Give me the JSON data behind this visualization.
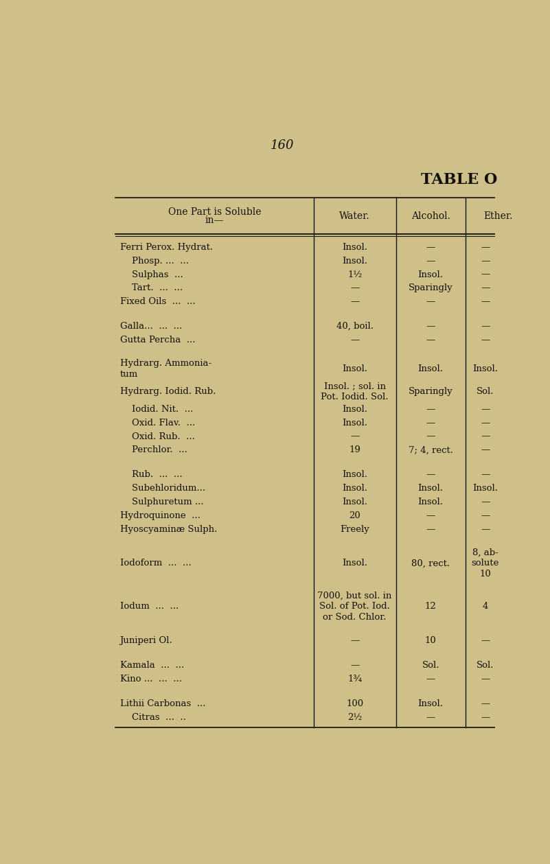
{
  "page_number": "160",
  "table_title": "TABLE O",
  "bg_color": "#cfc08a",
  "text_color": "#111008",
  "header_row": [
    "One Part is Soluble\nin—",
    "Water.",
    "Alcohol.",
    "Ether."
  ],
  "rows": [
    {
      "name": "Ferri Perox. Hydrat.",
      "water": "Insol.",
      "alcohol": "—",
      "ether": "—",
      "indent": 0,
      "spacer": false
    },
    {
      "name": "    Phosp. ...  ...",
      "water": "Insol.",
      "alcohol": "—",
      "ether": "—",
      "indent": 1,
      "spacer": false
    },
    {
      "name": "    Sulphas  ...",
      "water": "1½",
      "alcohol": "Insol.",
      "ether": "—",
      "indent": 1,
      "spacer": false
    },
    {
      "name": "    Tart.  ...  ...",
      "water": "—",
      "alcohol": "Sparingly",
      "ether": "—",
      "indent": 1,
      "spacer": false
    },
    {
      "name": "Fixed Oils  ...  ...",
      "water": "—",
      "alcohol": "—",
      "ether": "—",
      "indent": 0,
      "spacer": false
    },
    {
      "name": "",
      "water": "",
      "alcohol": "",
      "ether": "",
      "indent": 0,
      "spacer": true
    },
    {
      "name": "Galla...  ...  ...",
      "water": "40, boil.",
      "alcohol": "—",
      "ether": "—",
      "indent": 0,
      "spacer": false
    },
    {
      "name": "Gutta Percha  ...",
      "water": "—",
      "alcohol": "—",
      "ether": "—",
      "indent": 0,
      "spacer": false
    },
    {
      "name": "",
      "water": "",
      "alcohol": "",
      "ether": "",
      "indent": 0,
      "spacer": true
    },
    {
      "name": "Hydrarg. Ammonia-\ntum",
      "water": "Insol.",
      "alcohol": "Insol.",
      "ether": "Insol.",
      "indent": 0,
      "spacer": false
    },
    {
      "name": "Hydrarg. Iodid. Rub.",
      "water": "Insol. ; sol. in\nPot. Iodid. Sol.",
      "alcohol": "Sparingly",
      "ether": "Sol.",
      "indent": 0,
      "spacer": false
    },
    {
      "name": "    Iodid. Nit.  ...",
      "water": "Insol.",
      "alcohol": "—",
      "ether": "—",
      "indent": 1,
      "spacer": false
    },
    {
      "name": "    Oxid. Flav.  ...",
      "water": "Insol.",
      "alcohol": "—",
      "ether": "—",
      "indent": 1,
      "spacer": false
    },
    {
      "name": "    Oxid. Rub.  ...",
      "water": "—",
      "alcohol": "—",
      "ether": "—",
      "indent": 1,
      "spacer": false
    },
    {
      "name": "    Perchlor.  ...",
      "water": "19",
      "alcohol": "7; 4, rect.",
      "ether": "—",
      "indent": 1,
      "spacer": false
    },
    {
      "name": "",
      "water": "",
      "alcohol": "",
      "ether": "",
      "indent": 0,
      "spacer": true
    },
    {
      "name": "    Rub.  ...  ...",
      "water": "Insol.",
      "alcohol": "—",
      "ether": "—",
      "indent": 1,
      "spacer": false
    },
    {
      "name": "    Subehloridum...",
      "water": "Insol.",
      "alcohol": "Insol.",
      "ether": "Insol.",
      "indent": 1,
      "spacer": false
    },
    {
      "name": "    Sulphuretum ...",
      "water": "Insol.",
      "alcohol": "Insol.",
      "ether": "—",
      "indent": 1,
      "spacer": false
    },
    {
      "name": "Hydroquinone  ...",
      "water": "20",
      "alcohol": "—",
      "ether": "—",
      "indent": 0,
      "spacer": false
    },
    {
      "name": "Hyoscyaminæ Sulph.",
      "water": "Freely",
      "alcohol": "—",
      "ether": "—",
      "indent": 0,
      "spacer": false
    },
    {
      "name": "",
      "water": "",
      "alcohol": "",
      "ether": "",
      "indent": 0,
      "spacer": true
    },
    {
      "name": "Iodoform  ...  ...",
      "water": "Insol.",
      "alcohol": "80, rect.",
      "ether": "8, ab-\nsolute\n10",
      "indent": 0,
      "spacer": false
    },
    {
      "name": "",
      "water": "",
      "alcohol": "",
      "ether": "",
      "indent": 0,
      "spacer": true
    },
    {
      "name": "Iodum  ...  ...",
      "water": "7000, but sol. in\nSol. of Pot. Iod.\nor Sod. Chlor.",
      "alcohol": "12",
      "ether": "4",
      "indent": 0,
      "spacer": false
    },
    {
      "name": "",
      "water": "",
      "alcohol": "",
      "ether": "",
      "indent": 0,
      "spacer": true
    },
    {
      "name": "Juniperi Ol.",
      "water": "—",
      "alcohol": "10",
      "ether": "—",
      "indent": 0,
      "spacer": false
    },
    {
      "name": "",
      "water": "",
      "alcohol": "",
      "ether": "",
      "indent": 0,
      "spacer": true
    },
    {
      "name": "Kamala  ...  ...",
      "water": "—",
      "alcohol": "Sol.",
      "ether": "Sol.",
      "indent": 0,
      "spacer": false
    },
    {
      "name": "Kino ...  ...  ...",
      "water": "1¾",
      "alcohol": "—",
      "ether": "—",
      "indent": 0,
      "spacer": false
    },
    {
      "name": "",
      "water": "",
      "alcohol": "",
      "ether": "",
      "indent": 0,
      "spacer": true
    },
    {
      "name": "Lithii Carbonas  ...",
      "water": "100",
      "alcohol": "Insol.",
      "ether": "—",
      "indent": 0,
      "spacer": false
    },
    {
      "name": "    Citras  ...  ..",
      "water": "2½",
      "alcohol": "—",
      "ether": "—",
      "indent": 1,
      "spacer": false
    }
  ]
}
